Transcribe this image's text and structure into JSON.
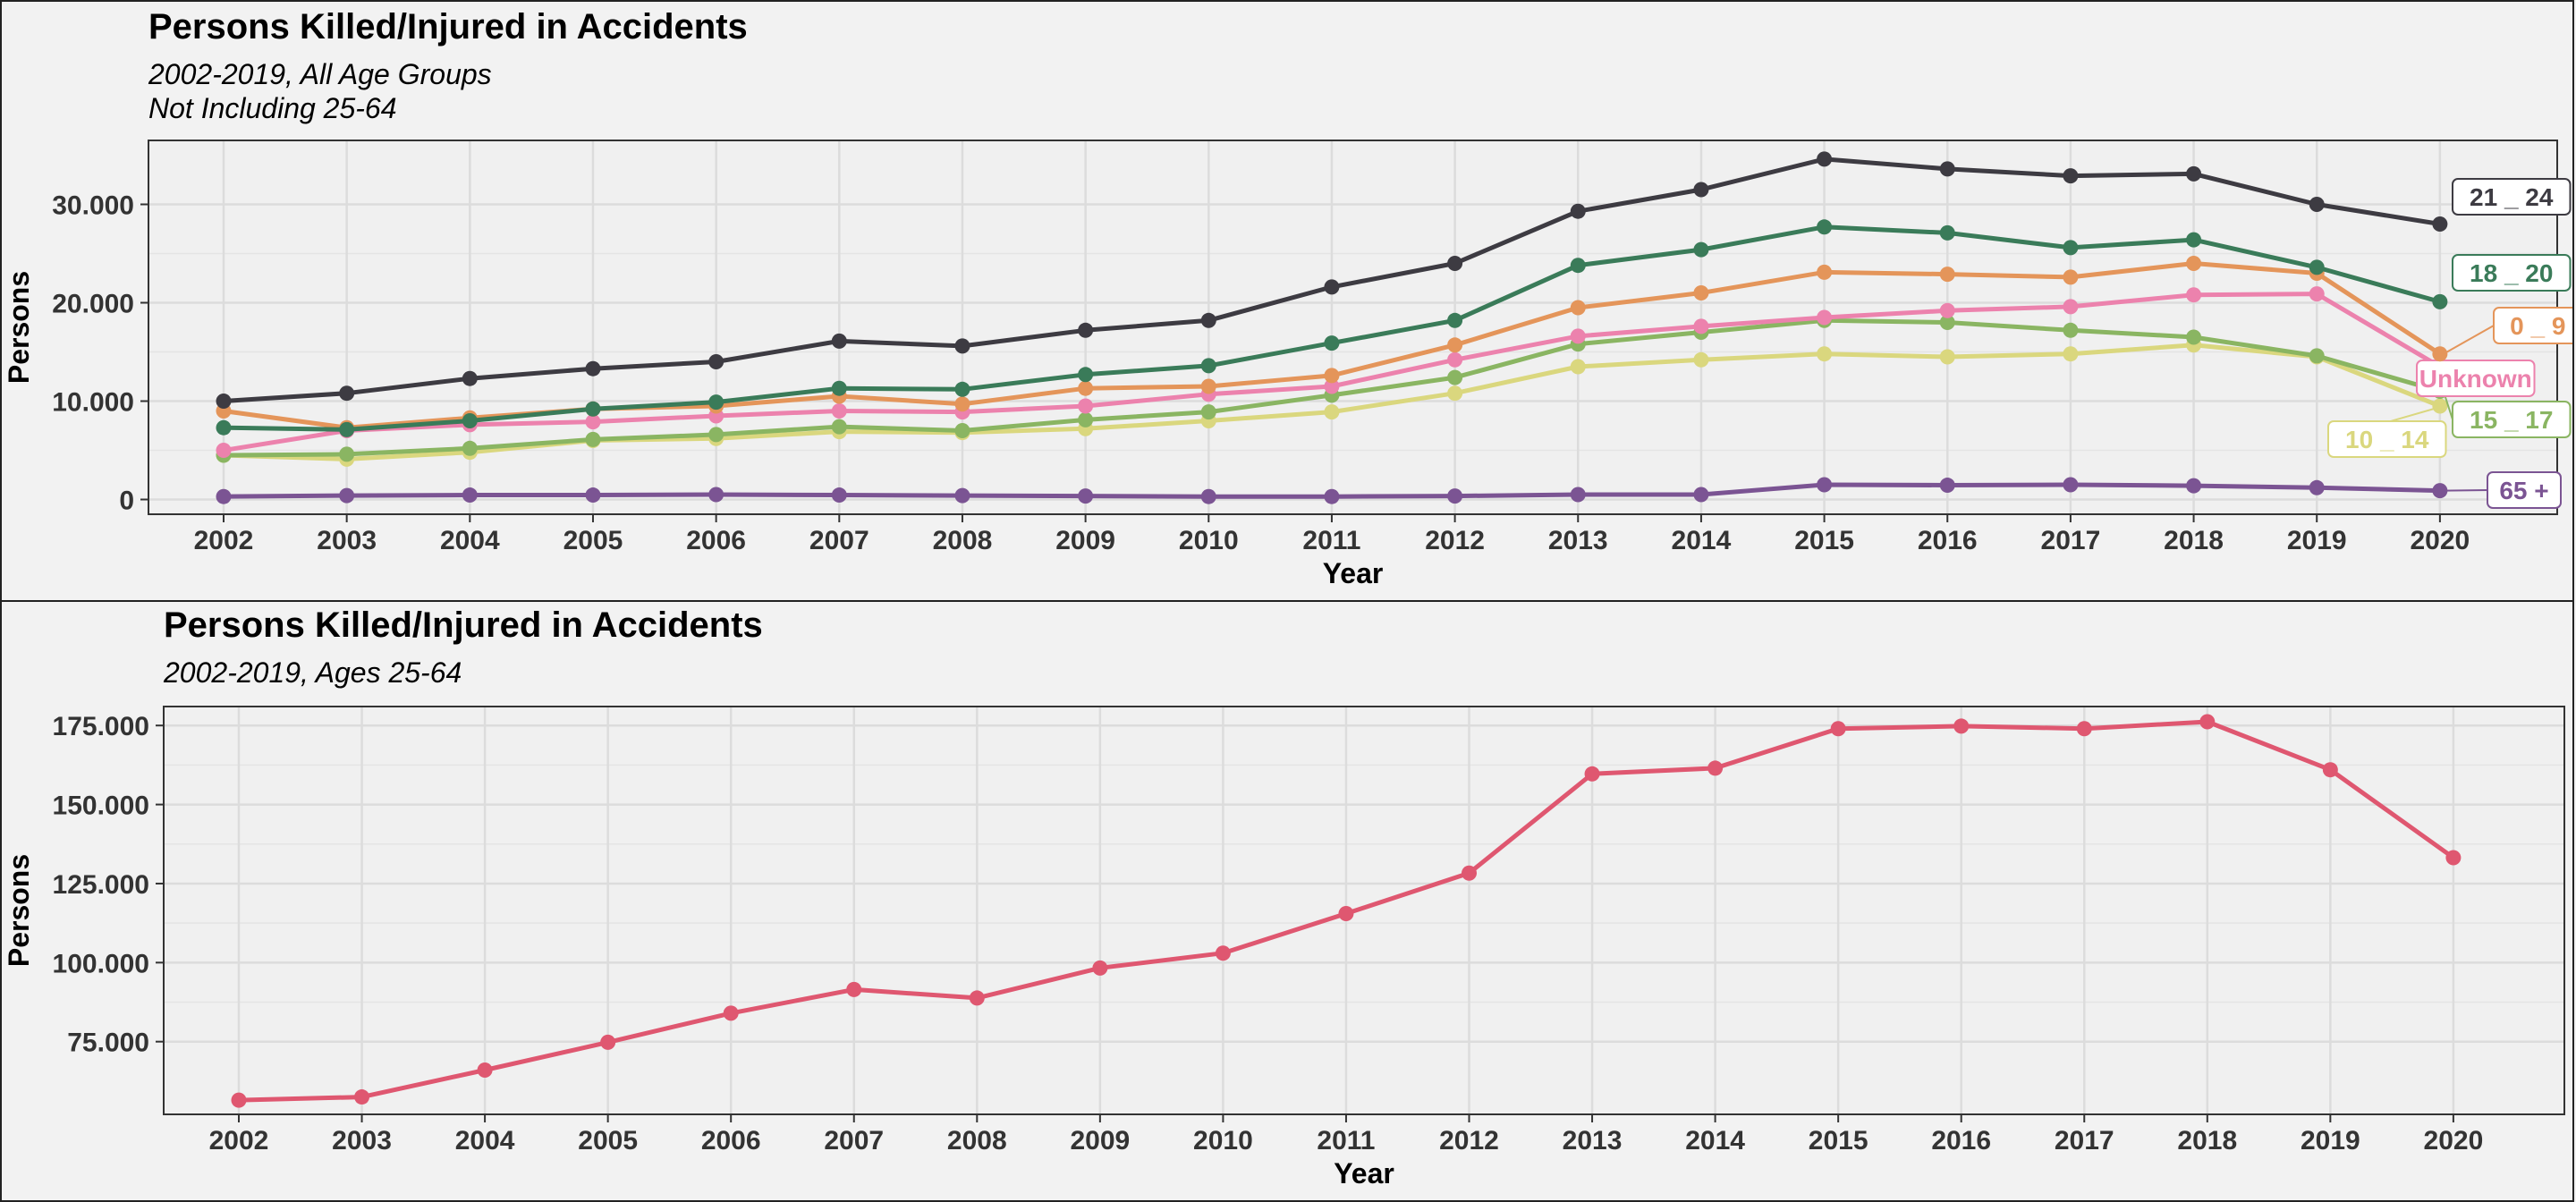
{
  "chart_data": [
    {
      "type": "line",
      "title": "Persons Killed/Injured in Accidents",
      "subtitle_lines": [
        "2002-2019, All Age Groups",
        "Not Including 25-64"
      ],
      "xlabel": "Year",
      "ylabel": "Persons",
      "x": [
        2002,
        2003,
        2004,
        2005,
        2006,
        2007,
        2008,
        2009,
        2010,
        2011,
        2012,
        2013,
        2014,
        2015,
        2016,
        2017,
        2018,
        2019,
        2020
      ],
      "ylim": [
        -1500,
        36500
      ],
      "yticks": [
        0,
        10000,
        20000,
        30000
      ],
      "ytick_labels": [
        "0",
        "10.000",
        "20.000",
        "30.000"
      ],
      "grid": true,
      "legend": "end-of-line labels",
      "series": [
        {
          "name": "65 +",
          "color": "#7b5493",
          "values": [
            300,
            400,
            450,
            450,
            500,
            450,
            400,
            350,
            300,
            300,
            350,
            500,
            500,
            1500,
            1450,
            1500,
            1400,
            1200,
            900
          ]
        },
        {
          "name": "10 _ 14",
          "color": "#dad77e",
          "values": [
            4500,
            4100,
            4800,
            6000,
            6200,
            6900,
            6800,
            7200,
            8000,
            8900,
            10800,
            13500,
            14200,
            14800,
            14500,
            14800,
            15700,
            14500,
            9500
          ]
        },
        {
          "name": "15 _ 17",
          "color": "#8ab562",
          "values": [
            4500,
            4600,
            5200,
            6100,
            6600,
            7400,
            7000,
            8100,
            8900,
            10600,
            12400,
            15800,
            17000,
            18200,
            18000,
            17200,
            16500,
            14600,
            11000
          ]
        },
        {
          "name": "Unknown",
          "color": "#ec82ad",
          "values": [
            5000,
            7000,
            7600,
            7900,
            8500,
            9000,
            8900,
            9500,
            10700,
            11500,
            14200,
            16600,
            17600,
            18500,
            19200,
            19600,
            20800,
            20900,
            13500
          ]
        },
        {
          "name": "0 _ 9",
          "color": "#e4955a",
          "values": [
            9000,
            7300,
            8300,
            9200,
            9500,
            10500,
            9700,
            11300,
            11500,
            12600,
            15700,
            19500,
            21000,
            23100,
            22900,
            22600,
            24000,
            23000,
            14800
          ]
        },
        {
          "name": "18 _ 20",
          "color": "#3a7b59",
          "values": [
            7300,
            7100,
            8000,
            9200,
            9900,
            11300,
            11200,
            12700,
            13600,
            15900,
            18200,
            23800,
            25400,
            27700,
            27100,
            25600,
            26400,
            23600,
            20100
          ]
        },
        {
          "name": "21 _ 24",
          "color": "#3d3b42",
          "values": [
            10000,
            10800,
            12300,
            13300,
            14000,
            16100,
            15600,
            17200,
            18200,
            21600,
            24000,
            29300,
            31500,
            34600,
            33600,
            32900,
            33100,
            30000,
            28000
          ]
        }
      ]
    },
    {
      "type": "line",
      "title": "Persons Killed/Injured in Accidents",
      "subtitle_lines": [
        "2002-2019, Ages 25-64"
      ],
      "xlabel": "Year",
      "ylabel": "Persons",
      "x": [
        2002,
        2003,
        2004,
        2005,
        2006,
        2007,
        2008,
        2009,
        2010,
        2011,
        2012,
        2013,
        2014,
        2015,
        2016,
        2017,
        2018,
        2019,
        2020
      ],
      "ylim": [
        52000,
        181000
      ],
      "yticks": [
        75000,
        100000,
        125000,
        150000,
        175000
      ],
      "ytick_labels": [
        "75.000",
        "100.000",
        "125.000",
        "150.000",
        "175.000"
      ],
      "grid": true,
      "series": [
        {
          "color": "#df5770",
          "values": [
            56500,
            57500,
            66000,
            74800,
            84000,
            91500,
            88800,
            98300,
            103000,
            115500,
            128300,
            159700,
            161500,
            174000,
            174800,
            174000,
            176200,
            161000,
            133200
          ]
        }
      ]
    }
  ]
}
